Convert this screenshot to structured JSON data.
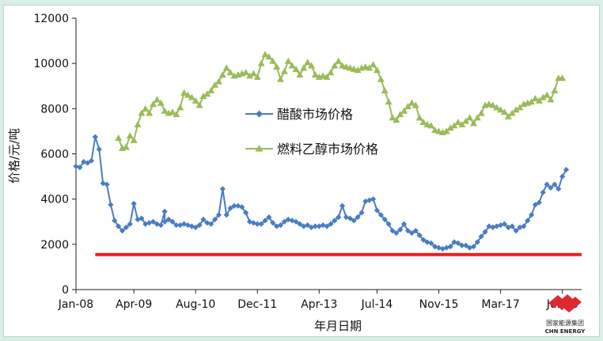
{
  "chart_data": {
    "type": "line",
    "ylabel": "价格/元/吨",
    "xlabel": "年月日期",
    "ylim": [
      0,
      12000
    ],
    "yticks": [
      0,
      2000,
      4000,
      6000,
      8000,
      10000,
      12000
    ],
    "xlim": [
      "2008-01",
      "2018-12"
    ],
    "x_tick_labels": [
      {
        "label": "Jan-08",
        "x": "2008-01"
      },
      {
        "label": "Apr-09",
        "x": "2009-04"
      },
      {
        "label": "Aug-10",
        "x": "2010-08"
      },
      {
        "label": "Dec-11",
        "x": "2011-12"
      },
      {
        "label": "Apr-13",
        "x": "2013-04"
      },
      {
        "label": "Jul-14",
        "x": "2014-07"
      },
      {
        "label": "Nov-15",
        "x": "2015-11"
      },
      {
        "label": "Mar-17",
        "x": "2017-03"
      },
      {
        "label": "Jul-18",
        "x": "2018-07"
      }
    ],
    "grid": false,
    "legend_position": "center",
    "reference_line": {
      "y": 1550,
      "x_start": "2008-06",
      "x_end": "2018-12",
      "color": "#ee1c1c"
    },
    "series": [
      {
        "name": "醋酸市场价格",
        "color": "#4a7cc4",
        "marker": "diamond",
        "points": [
          [
            "2008-01",
            5450
          ],
          [
            "2008-02",
            5400
          ],
          [
            "2008-03",
            5650
          ],
          [
            "2008-04",
            5600
          ],
          [
            "2008-05",
            5700
          ],
          [
            "2008-06",
            6750
          ],
          [
            "2008-07",
            6200
          ],
          [
            "2008-08",
            4700
          ],
          [
            "2008-09",
            4650
          ],
          [
            "2008-10",
            3750
          ],
          [
            "2008-11",
            3050
          ],
          [
            "2008-12",
            2800
          ],
          [
            "2009-01",
            2600
          ],
          [
            "2009-02",
            2750
          ],
          [
            "2009-03",
            2900
          ],
          [
            "2009-04",
            3800
          ],
          [
            "2009-05",
            3100
          ],
          [
            "2009-06",
            3150
          ],
          [
            "2009-07",
            2900
          ],
          [
            "2009-08",
            2950
          ],
          [
            "2009-09",
            3000
          ],
          [
            "2009-10",
            2900
          ],
          [
            "2009-11",
            2850
          ],
          [
            "2009-12",
            3450
          ],
          [
            "2009-12",
            3000
          ],
          [
            "2010-01",
            3100
          ],
          [
            "2010-02",
            3000
          ],
          [
            "2010-03",
            2850
          ],
          [
            "2010-04",
            2850
          ],
          [
            "2010-05",
            2900
          ],
          [
            "2010-06",
            2850
          ],
          [
            "2010-07",
            2800
          ],
          [
            "2010-08",
            2750
          ],
          [
            "2010-09",
            2850
          ],
          [
            "2010-10",
            3100
          ],
          [
            "2010-11",
            2950
          ],
          [
            "2010-12",
            2900
          ],
          [
            "2011-01",
            3100
          ],
          [
            "2011-02",
            3300
          ],
          [
            "2011-03",
            4450
          ],
          [
            "2011-04",
            3300
          ],
          [
            "2011-05",
            3600
          ],
          [
            "2011-06",
            3700
          ],
          [
            "2011-07",
            3700
          ],
          [
            "2011-08",
            3650
          ],
          [
            "2011-09",
            3400
          ],
          [
            "2011-10",
            3000
          ],
          [
            "2011-11",
            2950
          ],
          [
            "2011-12",
            2900
          ],
          [
            "2012-01",
            2900
          ],
          [
            "2012-02",
            3050
          ],
          [
            "2012-03",
            3200
          ],
          [
            "2012-04",
            2950
          ],
          [
            "2012-05",
            2800
          ],
          [
            "2012-06",
            2850
          ],
          [
            "2012-07",
            3000
          ],
          [
            "2012-08",
            3100
          ],
          [
            "2012-09",
            3050
          ],
          [
            "2012-10",
            3000
          ],
          [
            "2012-11",
            2900
          ],
          [
            "2012-12",
            2800
          ],
          [
            "2013-01",
            2850
          ],
          [
            "2013-02",
            2750
          ],
          [
            "2013-03",
            2800
          ],
          [
            "2013-04",
            2800
          ],
          [
            "2013-05",
            2850
          ],
          [
            "2013-06",
            2800
          ],
          [
            "2013-07",
            2900
          ],
          [
            "2013-08",
            3050
          ],
          [
            "2013-09",
            3200
          ],
          [
            "2013-10",
            3700
          ],
          [
            "2013-11",
            3200
          ],
          [
            "2013-12",
            3150
          ],
          [
            "2014-01",
            3050
          ],
          [
            "2014-02",
            3200
          ],
          [
            "2014-03",
            3400
          ],
          [
            "2014-04",
            3900
          ],
          [
            "2014-05",
            3950
          ],
          [
            "2014-06",
            4000
          ],
          [
            "2014-07",
            3500
          ],
          [
            "2014-08",
            3300
          ],
          [
            "2014-09",
            3100
          ],
          [
            "2014-10",
            2900
          ],
          [
            "2014-11",
            2600
          ],
          [
            "2014-12",
            2500
          ],
          [
            "2015-01",
            2650
          ],
          [
            "2015-02",
            2900
          ],
          [
            "2015-03",
            2600
          ],
          [
            "2015-04",
            2500
          ],
          [
            "2015-05",
            2600
          ],
          [
            "2015-06",
            2400
          ],
          [
            "2015-07",
            2200
          ],
          [
            "2015-08",
            2100
          ],
          [
            "2015-09",
            2050
          ],
          [
            "2015-10",
            1900
          ],
          [
            "2015-11",
            1850
          ],
          [
            "2015-12",
            1800
          ],
          [
            "2016-01",
            1850
          ],
          [
            "2016-02",
            1900
          ],
          [
            "2016-03",
            2100
          ],
          [
            "2016-04",
            2050
          ],
          [
            "2016-05",
            1950
          ],
          [
            "2016-06",
            1950
          ],
          [
            "2016-07",
            1850
          ],
          [
            "2016-08",
            1900
          ],
          [
            "2016-09",
            2100
          ],
          [
            "2016-10",
            2350
          ],
          [
            "2016-11",
            2550
          ],
          [
            "2016-12",
            2800
          ],
          [
            "2017-01",
            2750
          ],
          [
            "2017-02",
            2800
          ],
          [
            "2017-03",
            2850
          ],
          [
            "2017-04",
            2900
          ],
          [
            "2017-05",
            2750
          ],
          [
            "2017-06",
            2800
          ],
          [
            "2017-07",
            2600
          ],
          [
            "2017-08",
            2750
          ],
          [
            "2017-09",
            2800
          ],
          [
            "2017-10",
            3050
          ],
          [
            "2017-11",
            3300
          ],
          [
            "2017-12",
            3750
          ],
          [
            "2018-01",
            3850
          ],
          [
            "2018-02",
            4300
          ],
          [
            "2018-03",
            4650
          ],
          [
            "2018-04",
            4500
          ],
          [
            "2018-05",
            4650
          ],
          [
            "2018-06",
            4450
          ],
          [
            "2018-07",
            5000
          ],
          [
            "2018-08",
            5300
          ]
        ]
      },
      {
        "name": "燃料乙醇市场价格",
        "color": "#9bbb59",
        "marker": "triangle",
        "points": [
          [
            "2008-12",
            6700
          ],
          [
            "2009-01",
            6250
          ],
          [
            "2009-02",
            6300
          ],
          [
            "2009-03",
            6800
          ],
          [
            "2009-04",
            6600
          ],
          [
            "2009-05",
            7300
          ],
          [
            "2009-06",
            7800
          ],
          [
            "2009-07",
            8000
          ],
          [
            "2009-08",
            7800
          ],
          [
            "2009-09",
            8200
          ],
          [
            "2009-10",
            8400
          ],
          [
            "2009-11",
            8250
          ],
          [
            "2009-12",
            7900
          ],
          [
            "2010-01",
            7800
          ],
          [
            "2010-02",
            7850
          ],
          [
            "2010-03",
            7750
          ],
          [
            "2010-04",
            8050
          ],
          [
            "2010-05",
            8700
          ],
          [
            "2010-06",
            8600
          ],
          [
            "2010-07",
            8500
          ],
          [
            "2010-08",
            8350
          ],
          [
            "2010-09",
            8150
          ],
          [
            "2010-10",
            8550
          ],
          [
            "2010-11",
            8650
          ],
          [
            "2010-12",
            8800
          ],
          [
            "2011-01",
            9050
          ],
          [
            "2011-02",
            9200
          ],
          [
            "2011-03",
            9500
          ],
          [
            "2011-04",
            9800
          ],
          [
            "2011-05",
            9600
          ],
          [
            "2011-06",
            9450
          ],
          [
            "2011-07",
            9500
          ],
          [
            "2011-08",
            9550
          ],
          [
            "2011-09",
            9600
          ],
          [
            "2011-10",
            9450
          ],
          [
            "2011-11",
            9550
          ],
          [
            "2011-12",
            9400
          ],
          [
            "2012-01",
            10000
          ],
          [
            "2012-02",
            10400
          ],
          [
            "2012-03",
            10300
          ],
          [
            "2012-04",
            10100
          ],
          [
            "2012-05",
            9850
          ],
          [
            "2012-06",
            9300
          ],
          [
            "2012-07",
            9650
          ],
          [
            "2012-08",
            10100
          ],
          [
            "2012-09",
            9900
          ],
          [
            "2012-10",
            9750
          ],
          [
            "2012-11",
            9500
          ],
          [
            "2012-12",
            9800
          ],
          [
            "2013-01",
            10050
          ],
          [
            "2013-02",
            9900
          ],
          [
            "2013-03",
            9500
          ],
          [
            "2013-04",
            9400
          ],
          [
            "2013-05",
            9450
          ],
          [
            "2013-06",
            9400
          ],
          [
            "2013-07",
            9600
          ],
          [
            "2013-08",
            9900
          ],
          [
            "2013-09",
            10100
          ],
          [
            "2013-10",
            9900
          ],
          [
            "2013-11",
            9850
          ],
          [
            "2013-12",
            9800
          ],
          [
            "2014-01",
            9750
          ],
          [
            "2014-02",
            9700
          ],
          [
            "2014-03",
            9800
          ],
          [
            "2014-04",
            9850
          ],
          [
            "2014-05",
            9800
          ],
          [
            "2014-06",
            9950
          ],
          [
            "2014-07",
            9700
          ],
          [
            "2014-08",
            9300
          ],
          [
            "2014-09",
            8800
          ],
          [
            "2014-10",
            8300
          ],
          [
            "2014-11",
            7600
          ],
          [
            "2014-12",
            7500
          ],
          [
            "2015-01",
            7750
          ],
          [
            "2015-02",
            7900
          ],
          [
            "2015-03",
            8100
          ],
          [
            "2015-04",
            8250
          ],
          [
            "2015-05",
            8150
          ],
          [
            "2015-06",
            7600
          ],
          [
            "2015-07",
            7400
          ],
          [
            "2015-08",
            7300
          ],
          [
            "2015-09",
            7250
          ],
          [
            "2015-10",
            7050
          ],
          [
            "2015-11",
            7000
          ],
          [
            "2015-12",
            6950
          ],
          [
            "2016-01",
            7000
          ],
          [
            "2016-02",
            7150
          ],
          [
            "2016-03",
            7250
          ],
          [
            "2016-04",
            7400
          ],
          [
            "2016-05",
            7300
          ],
          [
            "2016-06",
            7450
          ],
          [
            "2016-07",
            7600
          ],
          [
            "2016-08",
            7350
          ],
          [
            "2016-09",
            7600
          ],
          [
            "2016-10",
            7800
          ],
          [
            "2016-11",
            8150
          ],
          [
            "2016-12",
            8200
          ],
          [
            "2017-01",
            8150
          ],
          [
            "2017-02",
            8050
          ],
          [
            "2017-03",
            7950
          ],
          [
            "2017-04",
            7850
          ],
          [
            "2017-05",
            7650
          ],
          [
            "2017-06",
            7800
          ],
          [
            "2017-07",
            7950
          ],
          [
            "2017-08",
            8050
          ],
          [
            "2017-09",
            8200
          ],
          [
            "2017-10",
            8250
          ],
          [
            "2017-11",
            8300
          ],
          [
            "2017-12",
            8450
          ],
          [
            "2018-01",
            8350
          ],
          [
            "2018-02",
            8500
          ],
          [
            "2018-03",
            8600
          ],
          [
            "2018-04",
            8400
          ],
          [
            "2018-05",
            8800
          ],
          [
            "2018-06",
            9350
          ],
          [
            "2018-07",
            9350
          ]
        ]
      }
    ]
  },
  "logo": {
    "name_cn": "国家能源集团",
    "name_en": "CHN ENERGY",
    "color": "#e0282e"
  }
}
